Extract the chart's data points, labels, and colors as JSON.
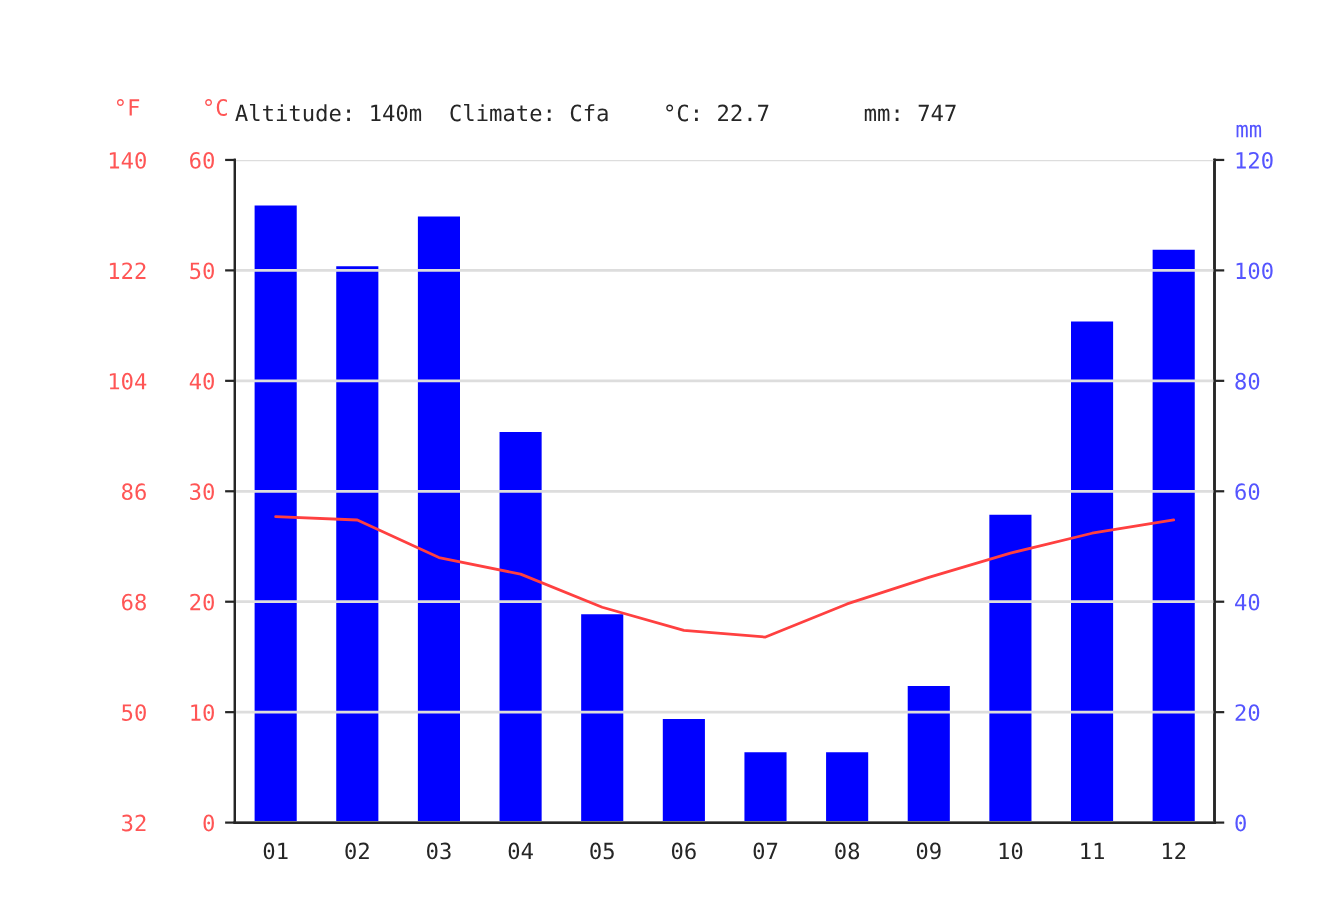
{
  "chart_data": {
    "type": "bar",
    "title": "Altitude: 140m  Climate: Cfa    °C: 22.7       mm: 747",
    "categories": [
      "01",
      "02",
      "03",
      "04",
      "05",
      "06",
      "07",
      "08",
      "09",
      "10",
      "11",
      "12"
    ],
    "series": [
      {
        "axis": "y2",
        "color": "#0000ff",
        "values": [
          112,
          101,
          110,
          71,
          38,
          19,
          13,
          13,
          25,
          56,
          91,
          104
        ]
      },
      {
        "type": "line",
        "axis": "y",
        "color": "#ff4040",
        "values": [
          27.7,
          27.4,
          24.0,
          22.5,
          19.5,
          17.4,
          16.8,
          19.8,
          22.2,
          24.4,
          26.2,
          27.4
        ]
      }
    ],
    "ylabel": "°C",
    "y2label": "mm",
    "y3label": "°F",
    "ylim": [
      0,
      60
    ],
    "yticks": [
      0,
      10,
      20,
      30,
      40,
      50,
      60
    ],
    "y2lim": [
      0,
      120
    ],
    "y2ticks": [
      0,
      20,
      40,
      60,
      80,
      100,
      120
    ],
    "y3lim": [
      32,
      140
    ],
    "y3ticks": [
      32,
      50,
      68,
      86,
      104,
      122,
      140
    ],
    "grid": "y",
    "legend": false,
    "marker": "none",
    "line_style": "solid"
  }
}
